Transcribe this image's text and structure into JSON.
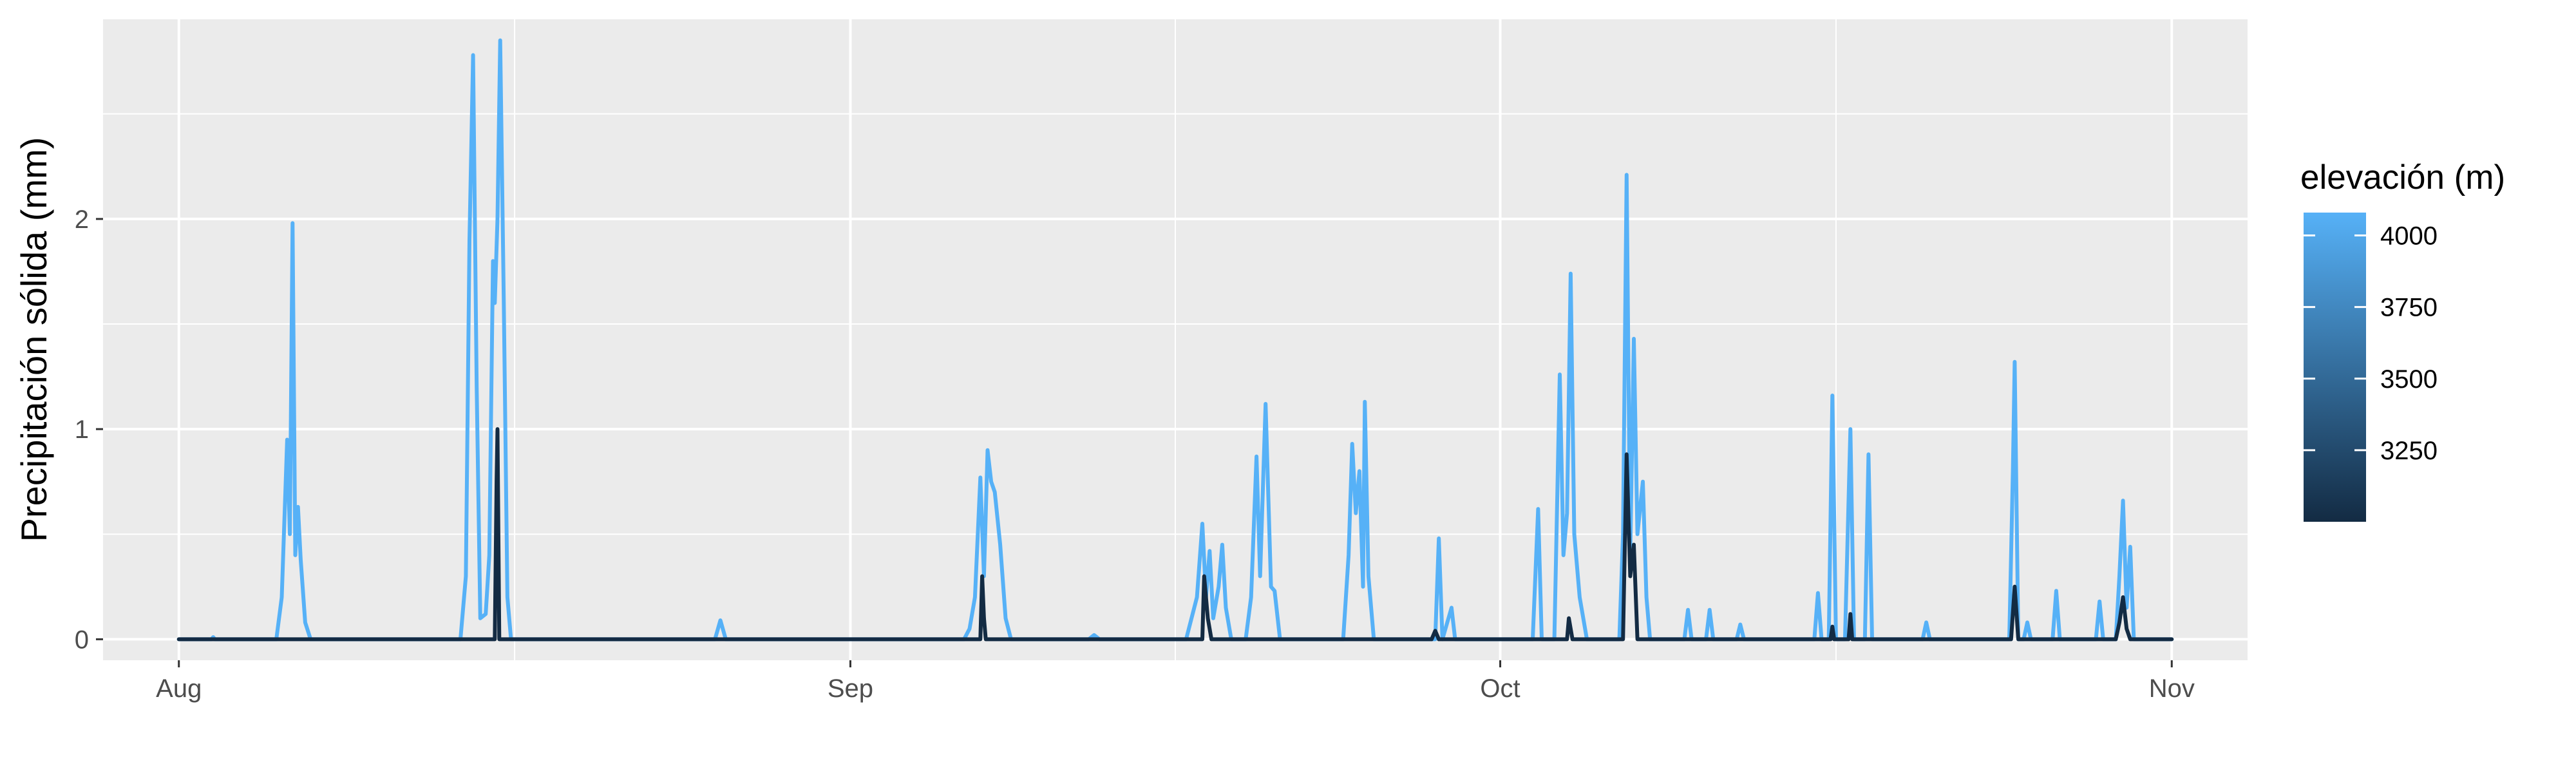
{
  "chart_data": {
    "type": "line",
    "title": "",
    "xlabel": "",
    "ylabel": "Precipitación sólida (mm)",
    "x_range": [
      "2024-08-01",
      "2024-11-01"
    ],
    "ylim": [
      -0.1,
      2.95
    ],
    "x_ticks": [
      {
        "date": "2024-08-01",
        "label": "Aug"
      },
      {
        "date": "2024-09-01",
        "label": "Sep"
      },
      {
        "date": "2024-10-01",
        "label": "Oct"
      },
      {
        "date": "2024-11-01",
        "label": "Nov"
      }
    ],
    "y_ticks": [
      0,
      1,
      2
    ],
    "grid": true,
    "background": "#ebebeb",
    "legend": {
      "title": "elevación (m)",
      "position": "right",
      "type": "colorbar",
      "range": [
        3000,
        4080
      ],
      "breaks": [
        4000,
        3750,
        3500,
        3250
      ],
      "low_color": "#132b43",
      "high_color": "#56b1f7"
    },
    "series": [
      {
        "elevation": 4080,
        "color": "#56b1f7",
        "points": [
          [
            "2024-08-01T00",
            0
          ],
          [
            "2024-08-02T12",
            0
          ],
          [
            "2024-08-02T14",
            0.01
          ],
          [
            "2024-08-02T16",
            0
          ],
          [
            "2024-08-05T12",
            0
          ],
          [
            "2024-08-05T18",
            0.2
          ],
          [
            "2024-08-06T00",
            0.95
          ],
          [
            "2024-08-06T03",
            0.5
          ],
          [
            "2024-08-06T06",
            1.98
          ],
          [
            "2024-08-06T09",
            0.4
          ],
          [
            "2024-08-06T12",
            0.63
          ],
          [
            "2024-08-06T15",
            0.38
          ],
          [
            "2024-08-06T20",
            0.08
          ],
          [
            "2024-08-07T02",
            0
          ],
          [
            "2024-08-14T00",
            0
          ],
          [
            "2024-08-14T06",
            0.3
          ],
          [
            "2024-08-14T10",
            1.9
          ],
          [
            "2024-08-14T14",
            2.78
          ],
          [
            "2024-08-14T18",
            1.2
          ],
          [
            "2024-08-14T22",
            0.1
          ],
          [
            "2024-08-15T04",
            0.12
          ],
          [
            "2024-08-15T08",
            0.4
          ],
          [
            "2024-08-15T12",
            1.8
          ],
          [
            "2024-08-15T14",
            1.6
          ],
          [
            "2024-08-15T17",
            2.0
          ],
          [
            "2024-08-15T20",
            2.85
          ],
          [
            "2024-08-16T00",
            1.6
          ],
          [
            "2024-08-16T04",
            0.2
          ],
          [
            "2024-08-16T08",
            0
          ],
          [
            "2024-08-25T18",
            0
          ],
          [
            "2024-08-26T00",
            0.09
          ],
          [
            "2024-08-26T06",
            0
          ],
          [
            "2024-09-06T06",
            0
          ],
          [
            "2024-09-06T12",
            0.05
          ],
          [
            "2024-09-06T18",
            0.2
          ],
          [
            "2024-09-07T00",
            0.77
          ],
          [
            "2024-09-07T04",
            0.3
          ],
          [
            "2024-09-07T08",
            0.9
          ],
          [
            "2024-09-07T12",
            0.75
          ],
          [
            "2024-09-07T16",
            0.7
          ],
          [
            "2024-09-07T22",
            0.45
          ],
          [
            "2024-09-08T04",
            0.1
          ],
          [
            "2024-09-08T10",
            0
          ],
          [
            "2024-09-12T00",
            0
          ],
          [
            "2024-09-12T06",
            0.02
          ],
          [
            "2024-09-12T12",
            0
          ],
          [
            "2024-09-16T12",
            0
          ],
          [
            "2024-09-17T00",
            0.2
          ],
          [
            "2024-09-17T06",
            0.55
          ],
          [
            "2024-09-17T10",
            0.2
          ],
          [
            "2024-09-17T14",
            0.42
          ],
          [
            "2024-09-17T18",
            0.1
          ],
          [
            "2024-09-18T00",
            0.25
          ],
          [
            "2024-09-18T04",
            0.45
          ],
          [
            "2024-09-18T08",
            0.15
          ],
          [
            "2024-09-18T14",
            0
          ],
          [
            "2024-09-19T06",
            0
          ],
          [
            "2024-09-19T12",
            0.2
          ],
          [
            "2024-09-19T18",
            0.87
          ],
          [
            "2024-09-19T22",
            0.3
          ],
          [
            "2024-09-20T04",
            1.12
          ],
          [
            "2024-09-20T10",
            0.25
          ],
          [
            "2024-09-20T14",
            0.23
          ],
          [
            "2024-09-20T20",
            0
          ],
          [
            "2024-09-23T18",
            0
          ],
          [
            "2024-09-24T00",
            0.4
          ],
          [
            "2024-09-24T04",
            0.93
          ],
          [
            "2024-09-24T08",
            0.6
          ],
          [
            "2024-09-24T12",
            0.8
          ],
          [
            "2024-09-24T16",
            0.25
          ],
          [
            "2024-09-24T18",
            1.13
          ],
          [
            "2024-09-24T22",
            0.3
          ],
          [
            "2024-09-25T04",
            0
          ],
          [
            "2024-09-28T00",
            0
          ],
          [
            "2024-09-28T04",
            0.48
          ],
          [
            "2024-09-28T08",
            0
          ],
          [
            "2024-09-28T18",
            0.15
          ],
          [
            "2024-09-28T22",
            0
          ],
          [
            "2024-10-02T12",
            0
          ],
          [
            "2024-10-02T18",
            0.62
          ],
          [
            "2024-10-02T22",
            0
          ],
          [
            "2024-10-03T12",
            0
          ],
          [
            "2024-10-03T18",
            1.26
          ],
          [
            "2024-10-03T22",
            0.4
          ],
          [
            "2024-10-04T02",
            0.6
          ],
          [
            "2024-10-04T06",
            1.74
          ],
          [
            "2024-10-04T10",
            0.5
          ],
          [
            "2024-10-04T16",
            0.2
          ],
          [
            "2024-10-05T00",
            0
          ],
          [
            "2024-10-06T12",
            0
          ],
          [
            "2024-10-06T16",
            0.5
          ],
          [
            "2024-10-06T20",
            2.21
          ],
          [
            "2024-10-07T00",
            0.4
          ],
          [
            "2024-10-07T04",
            1.43
          ],
          [
            "2024-10-07T08",
            0.5
          ],
          [
            "2024-10-07T14",
            0.75
          ],
          [
            "2024-10-07T18",
            0.2
          ],
          [
            "2024-10-07T22",
            0
          ],
          [
            "2024-10-09T12",
            0
          ],
          [
            "2024-10-09T16",
            0.14
          ],
          [
            "2024-10-09T20",
            0
          ],
          [
            "2024-10-10T12",
            0
          ],
          [
            "2024-10-10T16",
            0.14
          ],
          [
            "2024-10-10T20",
            0
          ],
          [
            "2024-10-11T22",
            0
          ],
          [
            "2024-10-12T02",
            0.07
          ],
          [
            "2024-10-12T06",
            0
          ],
          [
            "2024-10-15T12",
            0
          ],
          [
            "2024-10-15T16",
            0.22
          ],
          [
            "2024-10-15T20",
            0
          ],
          [
            "2024-10-16T04",
            0
          ],
          [
            "2024-10-16T08",
            1.16
          ],
          [
            "2024-10-16T12",
            0
          ],
          [
            "2024-10-16T22",
            0
          ],
          [
            "2024-10-17T04",
            1.0
          ],
          [
            "2024-10-17T08",
            0
          ],
          [
            "2024-10-17T20",
            0
          ],
          [
            "2024-10-18T00",
            0.88
          ],
          [
            "2024-10-18T04",
            0
          ],
          [
            "2024-10-20T12",
            0
          ],
          [
            "2024-10-20T16",
            0.08
          ],
          [
            "2024-10-20T20",
            0
          ],
          [
            "2024-10-24T12",
            0
          ],
          [
            "2024-10-24T16",
            0.8
          ],
          [
            "2024-10-24T18",
            1.32
          ],
          [
            "2024-10-24T22",
            0
          ],
          [
            "2024-10-25T04",
            0
          ],
          [
            "2024-10-25T08",
            0.08
          ],
          [
            "2024-10-25T12",
            0
          ],
          [
            "2024-10-26T12",
            0
          ],
          [
            "2024-10-26T16",
            0.23
          ],
          [
            "2024-10-26T20",
            0
          ],
          [
            "2024-10-28T12",
            0
          ],
          [
            "2024-10-28T16",
            0.18
          ],
          [
            "2024-10-28T20",
            0
          ],
          [
            "2024-10-29T10",
            0
          ],
          [
            "2024-10-29T14",
            0.3
          ],
          [
            "2024-10-29T18",
            0.66
          ],
          [
            "2024-10-29T22",
            0.15
          ],
          [
            "2024-10-30T02",
            0.44
          ],
          [
            "2024-10-30T06",
            0
          ],
          [
            "2024-11-01T00",
            0
          ]
        ]
      },
      {
        "elevation": 3000,
        "color": "#132b43",
        "points": [
          [
            "2024-08-01T00",
            0
          ],
          [
            "2024-08-15T14",
            0
          ],
          [
            "2024-08-15T16",
            0.75
          ],
          [
            "2024-08-15T17",
            1.0
          ],
          [
            "2024-08-15T19",
            0
          ],
          [
            "2024-09-07T00",
            0
          ],
          [
            "2024-09-07T02",
            0.3
          ],
          [
            "2024-09-07T04",
            0.1
          ],
          [
            "2024-09-07T06",
            0
          ],
          [
            "2024-09-17T06",
            0
          ],
          [
            "2024-09-17T08",
            0.3
          ],
          [
            "2024-09-17T12",
            0.1
          ],
          [
            "2024-09-17T16",
            0
          ],
          [
            "2024-09-27T20",
            0
          ],
          [
            "2024-09-28T00",
            0.04
          ],
          [
            "2024-09-28T04",
            0
          ],
          [
            "2024-10-04T02",
            0
          ],
          [
            "2024-10-04T04",
            0.1
          ],
          [
            "2024-10-04T08",
            0
          ],
          [
            "2024-10-06T16",
            0
          ],
          [
            "2024-10-06T20",
            0.88
          ],
          [
            "2024-10-07T00",
            0.3
          ],
          [
            "2024-10-07T04",
            0.45
          ],
          [
            "2024-10-07T08",
            0
          ],
          [
            "2024-10-16T06",
            0
          ],
          [
            "2024-10-16T08",
            0.06
          ],
          [
            "2024-10-16T10",
            0
          ],
          [
            "2024-10-17T02",
            0
          ],
          [
            "2024-10-17T04",
            0.12
          ],
          [
            "2024-10-17T06",
            0
          ],
          [
            "2024-10-24T14",
            0
          ],
          [
            "2024-10-24T18",
            0.25
          ],
          [
            "2024-10-24T22",
            0
          ],
          [
            "2024-10-29T10",
            0
          ],
          [
            "2024-10-29T14",
            0.08
          ],
          [
            "2024-10-29T18",
            0.2
          ],
          [
            "2024-10-29T22",
            0.05
          ],
          [
            "2024-10-30T02",
            0
          ],
          [
            "2024-11-01T00",
            0
          ]
        ]
      }
    ]
  }
}
